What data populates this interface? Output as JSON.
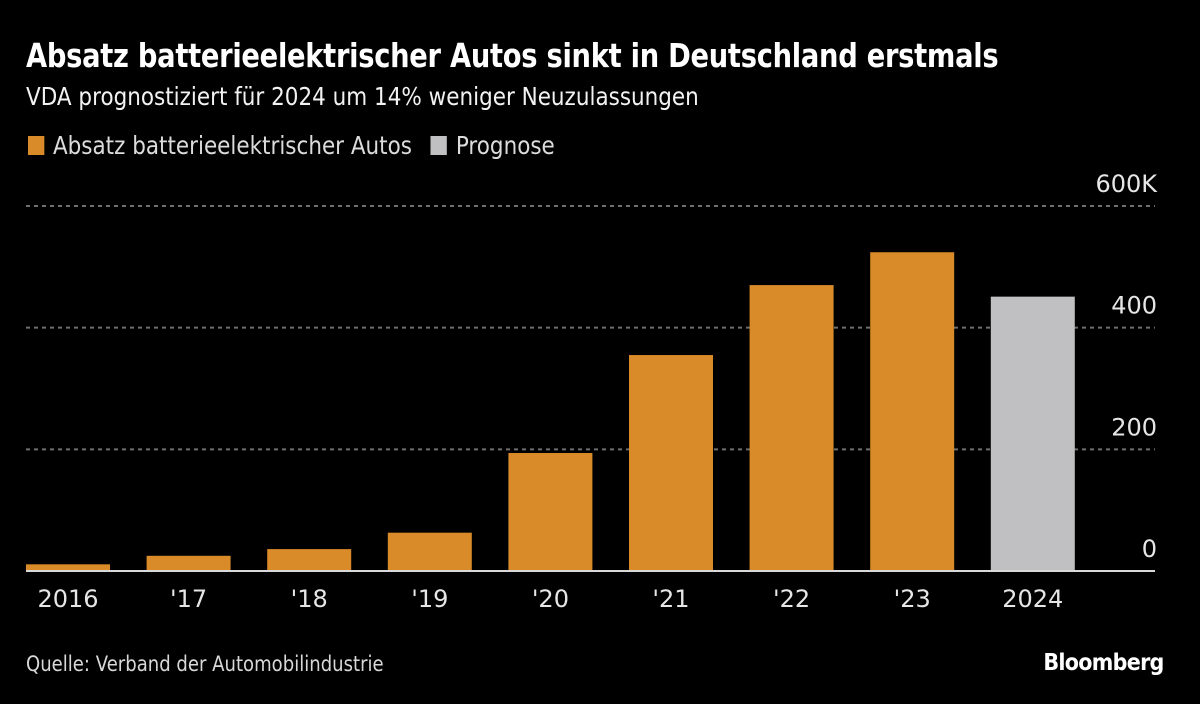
{
  "chart_data": {
    "type": "bar",
    "title": "Absatz batterieelektrischer Autos sinkt in Deutschland erstmals",
    "subtitle": "VDA prognostiziert für 2024 um 14% weniger Neuzulassungen",
    "categories": [
      "2016",
      "'17",
      "'18",
      "'19",
      "'20",
      "'21",
      "'22",
      "'23",
      "2024"
    ],
    "values": [
      11,
      25,
      36,
      63,
      194,
      355,
      470,
      524,
      451
    ],
    "value_units": "thousands",
    "bar_series": [
      "actual",
      "actual",
      "actual",
      "actual",
      "actual",
      "actual",
      "actual",
      "actual",
      "forecast"
    ],
    "legend": [
      {
        "key": "actual",
        "label": "Absatz batterieelektrischer Autos",
        "color": "#d98a29"
      },
      {
        "key": "forecast",
        "label": "Prognose",
        "color": "#c0bfc1"
      }
    ],
    "legend_position": "top-left",
    "y_axis_side": "right",
    "yticks": [
      0,
      200,
      400,
      600
    ],
    "ytick_labels": [
      "0",
      "200",
      "400",
      "600K"
    ],
    "ylim": [
      0,
      600
    ],
    "grid": true,
    "xlabel": "",
    "ylabel": ""
  },
  "footer": {
    "source": "Quelle: Verband der Automobilindustrie",
    "brand": "Bloomberg"
  },
  "colors": {
    "background": "#000000",
    "gridline": "#6e6e6e",
    "baseline": "#d9d9d9"
  }
}
